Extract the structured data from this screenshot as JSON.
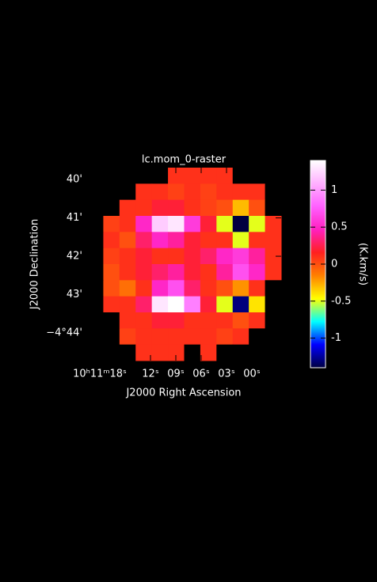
{
  "chart_data": {
    "type": "image",
    "title": "lc.mom_0-raster",
    "xlabel": "J2000 Right Ascension",
    "ylabel": "J2000 Declination",
    "colorbar_label": "(K.km/s)",
    "xlim": [
      19.5,
      -3.47
    ],
    "xticks": [
      {
        "value": 18,
        "label": "10ʰ11ᵐ18ˢ"
      },
      {
        "value": 12,
        "label": "12ˢ"
      },
      {
        "value": 9,
        "label": "09ˢ"
      },
      {
        "value": 6,
        "label": "06ˢ"
      },
      {
        "value": 3,
        "label": "03ˢ"
      },
      {
        "value": 0,
        "label": "00ˢ"
      }
    ],
    "ylim": [
      44.72,
      39.69
    ],
    "yticks": [
      {
        "value": 40,
        "label": "40'"
      },
      {
        "value": 41,
        "label": "41'"
      },
      {
        "value": 42,
        "label": "42'"
      },
      {
        "value": 43,
        "label": "43'"
      },
      {
        "value": 44,
        "label": "−4°44'"
      }
    ],
    "clim": [
      -1.4,
      1.4
    ],
    "cticks": [
      1,
      0.5,
      0,
      -0.5,
      -1
    ],
    "colormap": [
      "#000040",
      "#0000ff",
      "#00ffff",
      "#ffff00",
      "#ff8000",
      "#ff2020",
      "#ff20c0",
      "#ff60ff",
      "#ffb0ff",
      "#ffffff"
    ],
    "z": [
      [
        null,
        null,
        null,
        null,
        null,
        0.1,
        0.1,
        0.1,
        0.1,
        null,
        null,
        null
      ],
      [
        null,
        null,
        null,
        0.1,
        0.1,
        0.05,
        0.1,
        0.05,
        0.1,
        0.1,
        0.1,
        null
      ],
      [
        null,
        null,
        0.1,
        0.1,
        0.2,
        0.2,
        0.1,
        0.05,
        0.0,
        -0.3,
        0.0,
        null
      ],
      [
        null,
        0.05,
        0.1,
        0.5,
        1.2,
        1.3,
        0.6,
        0.2,
        -0.5,
        -1.4,
        -0.5,
        0.1
      ],
      [
        null,
        0.1,
        0.0,
        0.3,
        0.5,
        0.4,
        0.2,
        0.1,
        0.1,
        -0.5,
        0.1,
        0.1
      ],
      [
        null,
        0.05,
        0.1,
        0.2,
        0.1,
        0.1,
        0.2,
        0.3,
        0.5,
        0.6,
        0.4,
        0.1
      ],
      [
        null,
        0.0,
        0.1,
        0.2,
        0.3,
        0.4,
        0.2,
        0.1,
        0.4,
        0.7,
        0.5,
        0.1
      ],
      [
        null,
        0.0,
        -0.1,
        0.1,
        0.5,
        0.7,
        0.3,
        0.1,
        0.0,
        -0.2,
        0.1,
        null
      ],
      [
        null,
        0.1,
        0.1,
        0.3,
        1.3,
        1.4,
        0.9,
        0.2,
        -0.5,
        -1.3,
        -0.4,
        null
      ],
      [
        null,
        null,
        0.1,
        0.1,
        0.2,
        0.2,
        0.1,
        0.1,
        0.1,
        0.0,
        0.1,
        null
      ],
      [
        null,
        null,
        0.05,
        0.1,
        0.1,
        0.1,
        0.1,
        0.1,
        0.05,
        0.1,
        null,
        null
      ],
      [
        null,
        null,
        null,
        0.1,
        0.1,
        0.1,
        null,
        0.1,
        null,
        null,
        null,
        null
      ]
    ]
  }
}
